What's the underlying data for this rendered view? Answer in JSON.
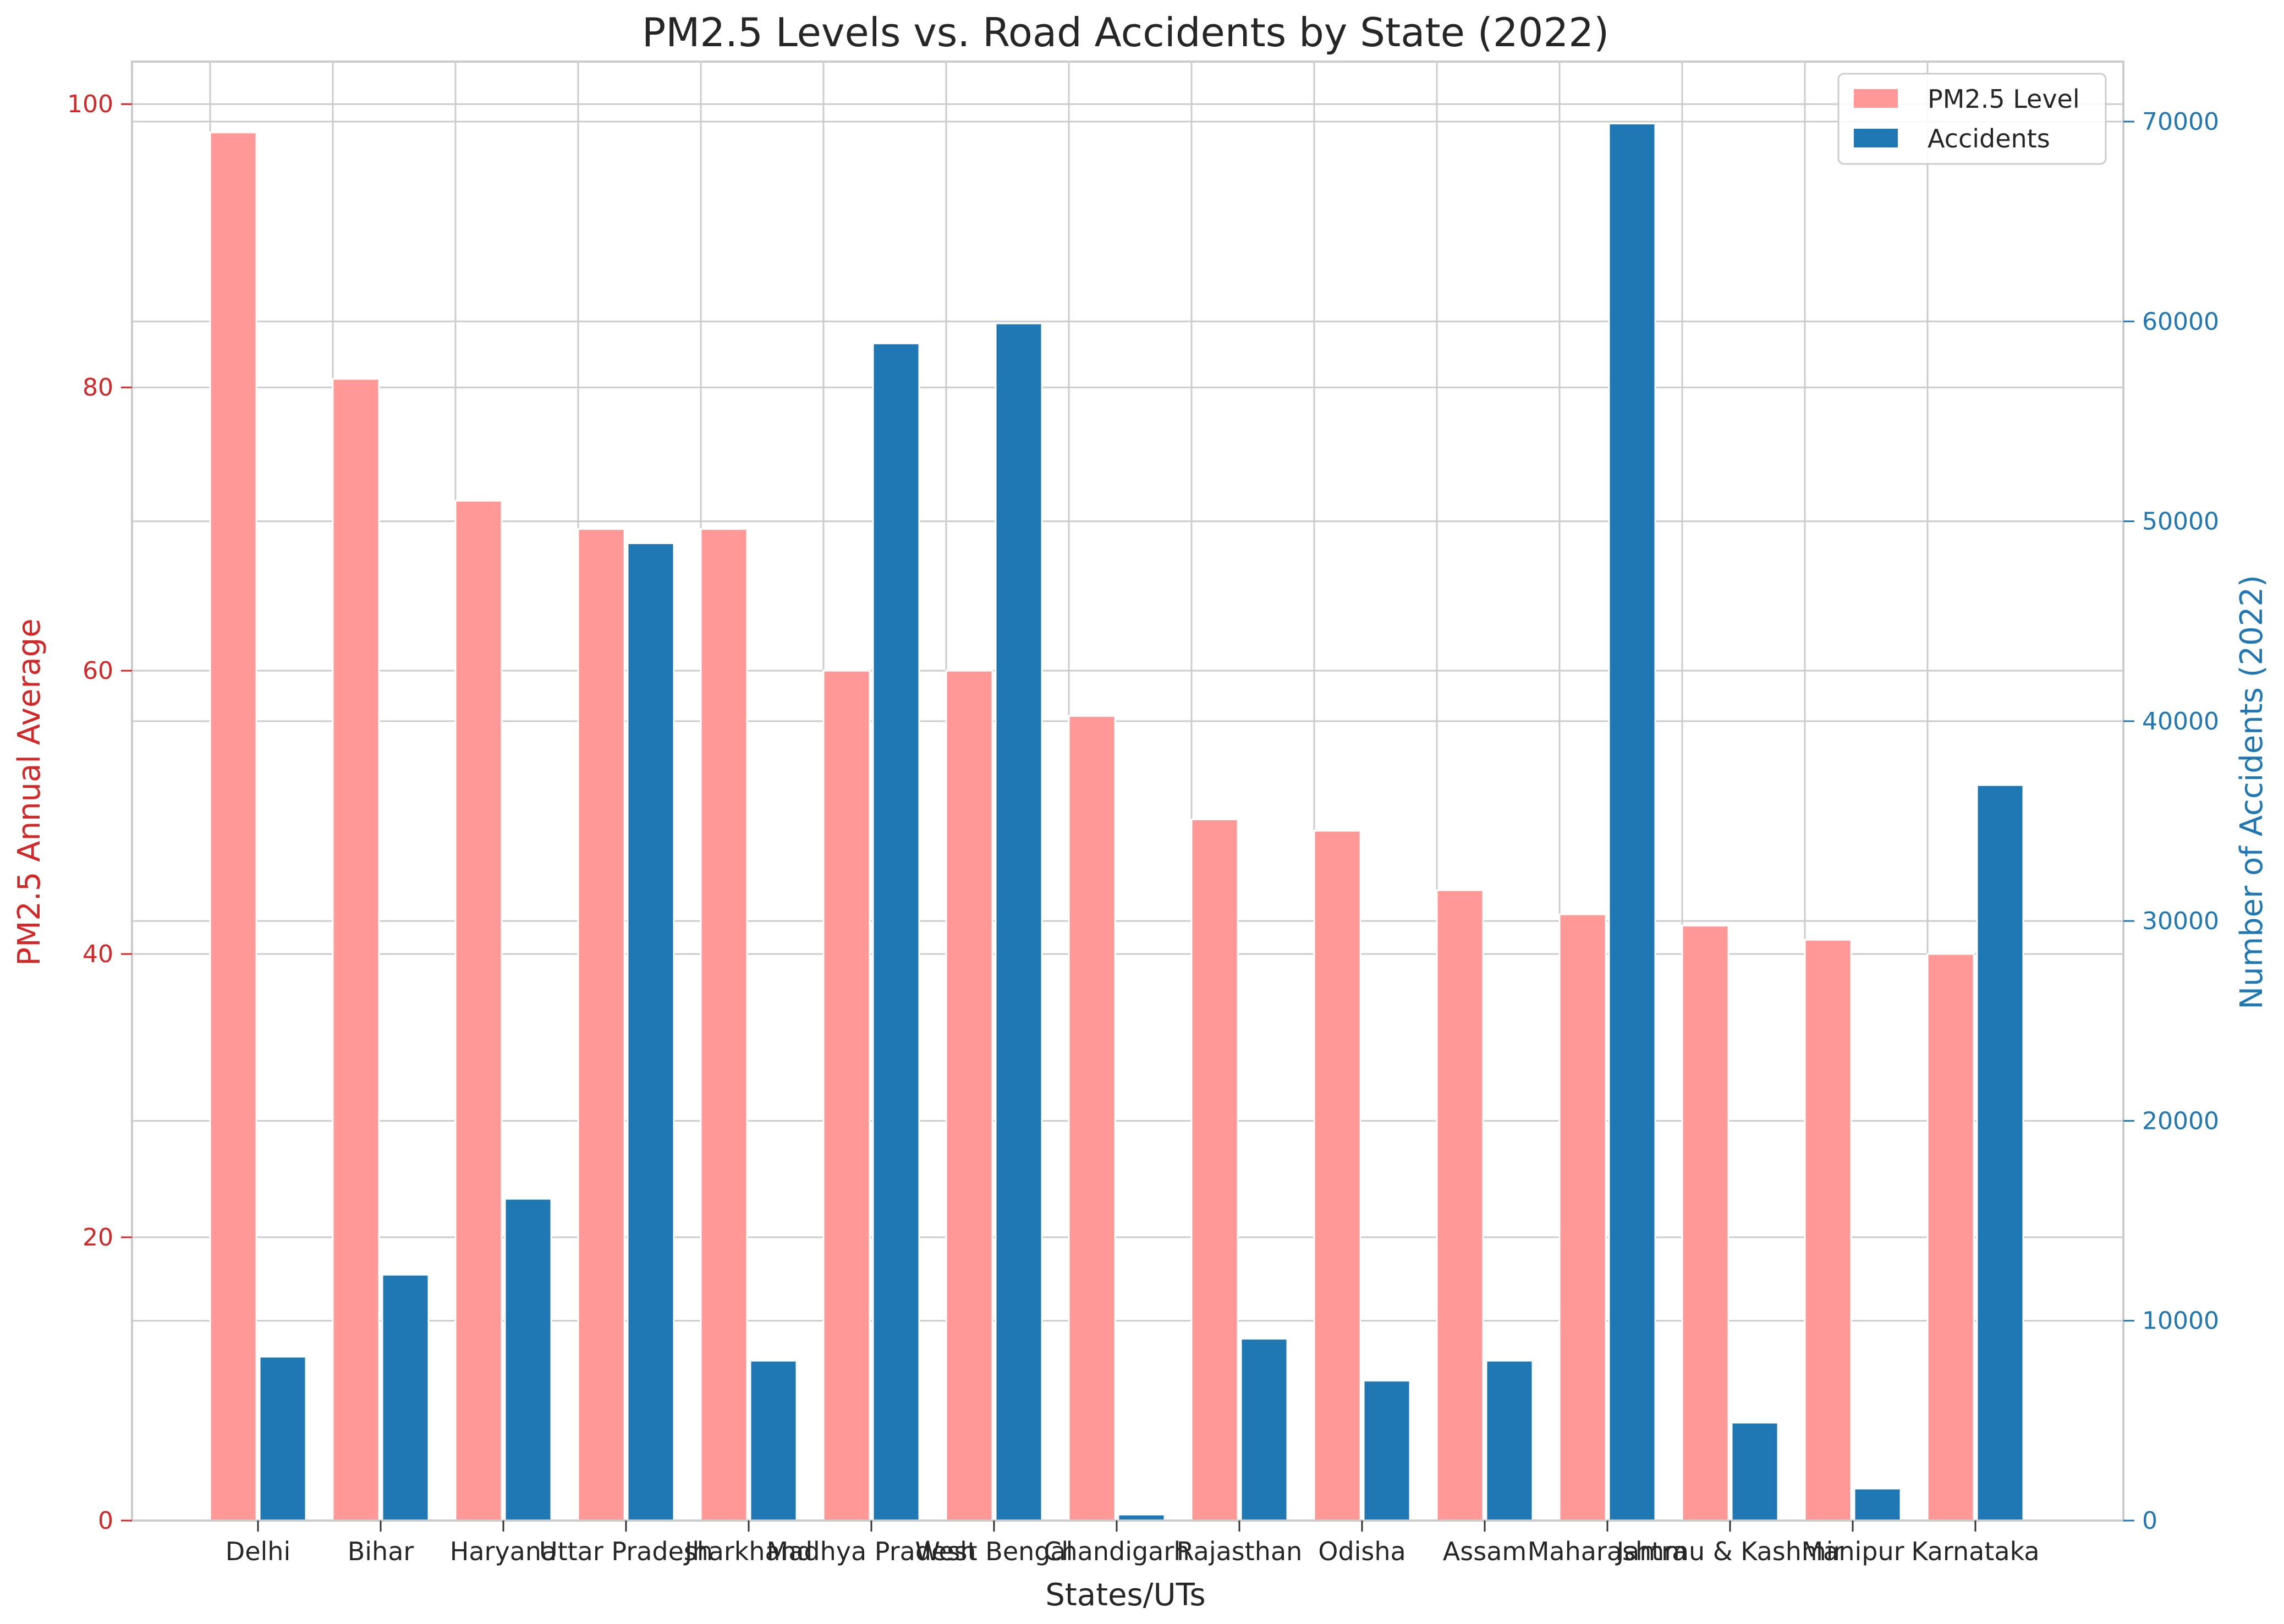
{
  "chart_data": {
    "type": "bar",
    "title": "PM2.5 Levels vs. Road Accidents by State (2022)",
    "xlabel": "States/UTs",
    "ylabel_left": "PM2.5 Annual Average",
    "ylabel_right": "Number of Accidents (2022)",
    "categories": [
      "Delhi",
      "Bihar",
      "Haryana",
      "Uttar Pradesh",
      "Jharkhand",
      "Madhya Pradesh",
      "West Bengal",
      "Chandigarh",
      "Rajasthan",
      "Odisha",
      "Assam",
      "Maharashtra",
      "Jammu & Kashmir",
      "Manipur",
      "Karnataka"
    ],
    "series": [
      {
        "name": "PM2.5 Level",
        "axis": "left",
        "color": "#ff9896",
        "values": [
          98,
          80.6,
          72,
          70,
          70,
          60,
          60,
          56.8,
          49.5,
          48.7,
          44.5,
          42.8,
          42,
          41,
          40
        ]
      },
      {
        "name": "Accidents",
        "axis": "right",
        "color": "#1f77b4",
        "values": [
          8200,
          12300,
          16100,
          48900,
          8000,
          58900,
          59900,
          300,
          9100,
          7000,
          8000,
          69900,
          4900,
          1600,
          36800
        ]
      }
    ],
    "ylim_left": [
      0,
      103
    ],
    "yticks_left": [
      0,
      20,
      40,
      60,
      80,
      100
    ],
    "ylim_right": [
      0,
      73000
    ],
    "yticks_right": [
      0,
      10000,
      20000,
      30000,
      40000,
      50000,
      60000,
      70000
    ],
    "left_axis_color": "#d62728",
    "right_axis_color": "#1f77b4",
    "grid": true,
    "legend_position": "top-right"
  }
}
